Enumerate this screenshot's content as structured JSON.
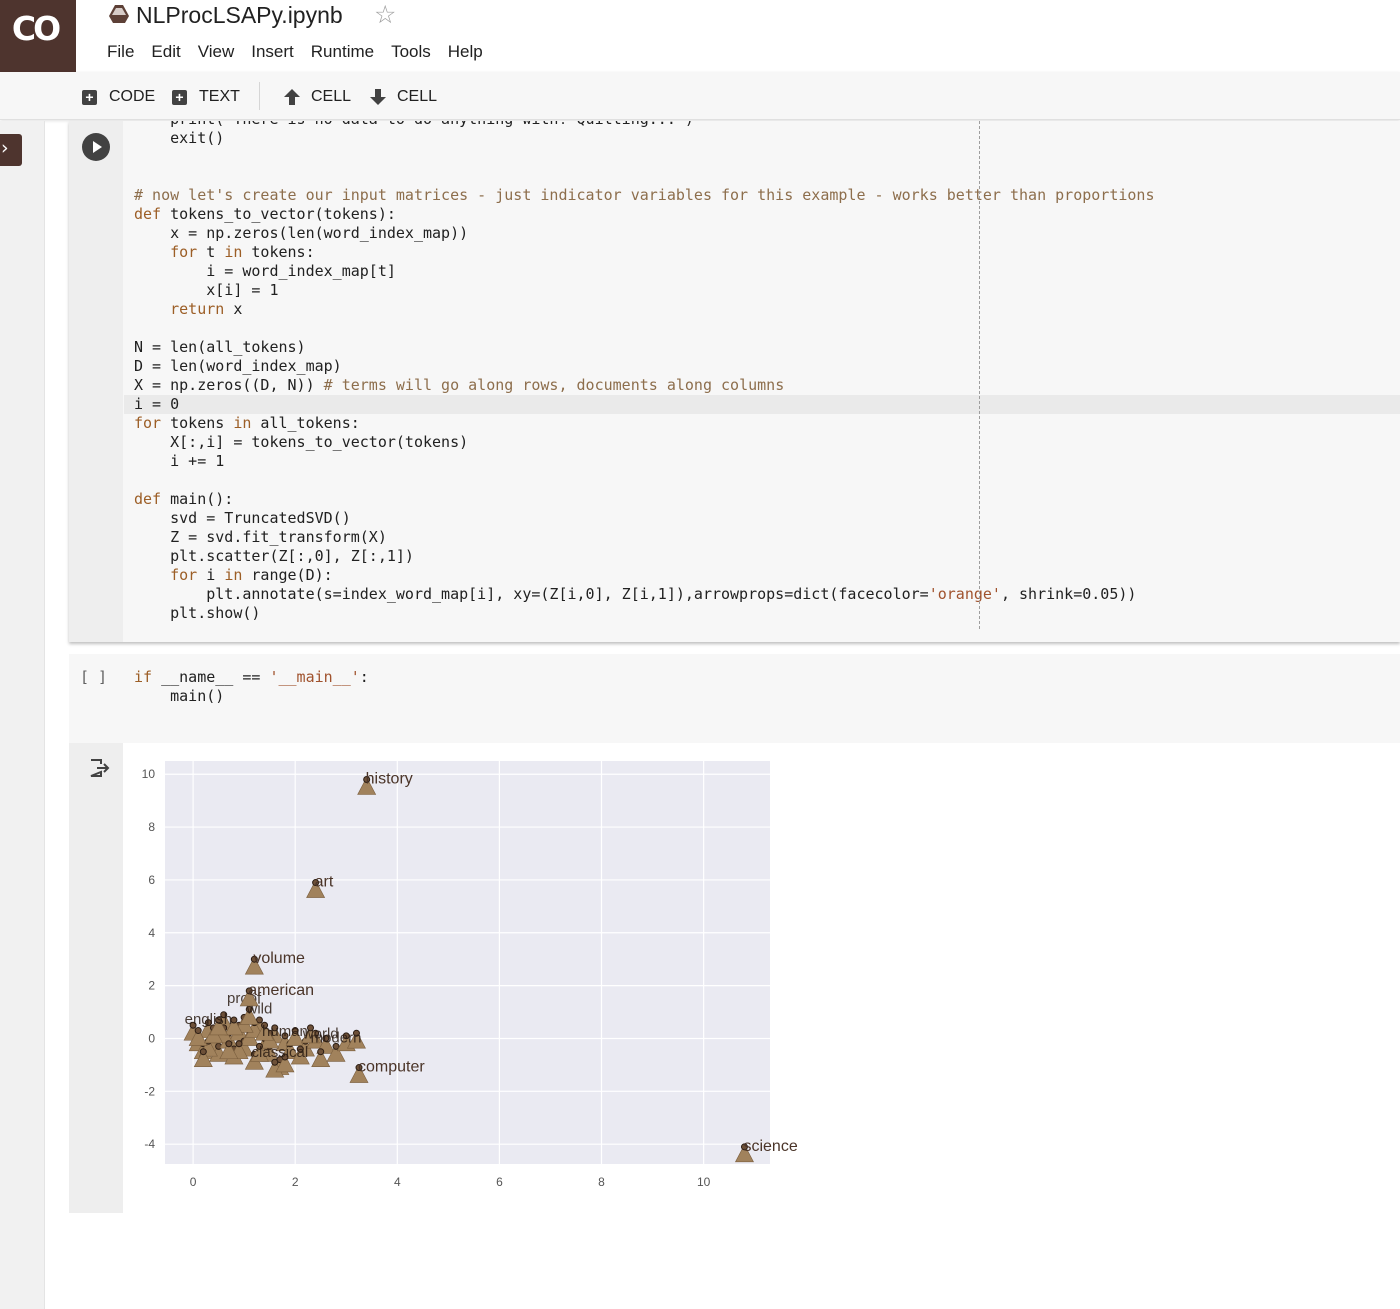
{
  "app": {
    "logo_text": "CO",
    "notebook_title": "NLProcLSAPy.ipynb",
    "star_glyph": "☆",
    "brand_color": "#4e342e"
  },
  "menu": [
    "File",
    "Edit",
    "View",
    "Insert",
    "Runtime",
    "Tools",
    "Help"
  ],
  "toolbar": {
    "code_label": "CODE",
    "text_label": "TEXT",
    "cell_up_label": "CELL",
    "cell_down_label": "CELL"
  },
  "cell1": {
    "lines": [
      [
        {
          "t": "    print(\"There is no data to do anything with! Quitting...\")",
          "c": "nm"
        }
      ],
      [
        {
          "t": "    exit()",
          "c": "nm"
        }
      ],
      [
        {
          "t": "",
          "c": "nm"
        }
      ],
      [
        {
          "t": "",
          "c": "nm"
        }
      ],
      [
        {
          "t": "# now let's create our input matrices - just indicator variables for this example - works better than proportions",
          "c": "cm"
        }
      ],
      [
        {
          "t": "def",
          "c": "kw"
        },
        {
          "t": " tokens_to_vector(tokens):",
          "c": "nm"
        }
      ],
      [
        {
          "t": "    x = np.zeros(len(word_index_map))",
          "c": "nm"
        }
      ],
      [
        {
          "t": "    ",
          "c": "nm"
        },
        {
          "t": "for",
          "c": "kw"
        },
        {
          "t": " t ",
          "c": "nm"
        },
        {
          "t": "in",
          "c": "kw"
        },
        {
          "t": " tokens:",
          "c": "nm"
        }
      ],
      [
        {
          "t": "        i = word_index_map[t]",
          "c": "nm"
        }
      ],
      [
        {
          "t": "        x[i] = 1",
          "c": "nm"
        }
      ],
      [
        {
          "t": "    ",
          "c": "nm"
        },
        {
          "t": "return",
          "c": "kw"
        },
        {
          "t": " x",
          "c": "nm"
        }
      ],
      [
        {
          "t": "",
          "c": "nm"
        }
      ],
      [
        {
          "t": "N = len(all_tokens)",
          "c": "nm"
        }
      ],
      [
        {
          "t": "D = len(word_index_map)",
          "c": "nm"
        }
      ],
      [
        {
          "t": "X = np.zeros((D, N)) ",
          "c": "nm"
        },
        {
          "t": "# terms will go along rows, documents along columns",
          "c": "cm"
        }
      ],
      [
        {
          "t": "i = 0",
          "c": "nm"
        }
      ],
      [
        {
          "t": "for",
          "c": "kw"
        },
        {
          "t": " tokens ",
          "c": "nm"
        },
        {
          "t": "in",
          "c": "kw"
        },
        {
          "t": " all_tokens:",
          "c": "nm"
        }
      ],
      [
        {
          "t": "    X[:,i] = tokens_to_vector(tokens)",
          "c": "nm"
        }
      ],
      [
        {
          "t": "    i += 1",
          "c": "nm"
        }
      ],
      [
        {
          "t": "",
          "c": "nm"
        }
      ],
      [
        {
          "t": "def",
          "c": "kw"
        },
        {
          "t": " main():",
          "c": "nm"
        }
      ],
      [
        {
          "t": "    svd = TruncatedSVD()",
          "c": "nm"
        }
      ],
      [
        {
          "t": "    Z = svd.fit_transform(X)",
          "c": "nm"
        }
      ],
      [
        {
          "t": "    plt.scatter(Z[:,0], Z[:,1])",
          "c": "nm"
        }
      ],
      [
        {
          "t": "    ",
          "c": "nm"
        },
        {
          "t": "for",
          "c": "kw"
        },
        {
          "t": " i ",
          "c": "nm"
        },
        {
          "t": "in",
          "c": "kw"
        },
        {
          "t": " range(D):",
          "c": "nm"
        }
      ],
      [
        {
          "t": "        plt.annotate(s=index_word_map[i], xy=(Z[i,0], Z[i,1]),arrowprops=dict(facecolor=",
          "c": "nm"
        },
        {
          "t": "'orange'",
          "c": "st"
        },
        {
          "t": ", shrink=0.05))",
          "c": "nm"
        }
      ],
      [
        {
          "t": "    plt.show()",
          "c": "nm"
        }
      ]
    ]
  },
  "cell2": {
    "prompt": "[ ]",
    "lines": [
      [
        {
          "t": "if",
          "c": "kw"
        },
        {
          "t": " __name__ == ",
          "c": "nm"
        },
        {
          "t": "'__main__'",
          "c": "st"
        },
        {
          "t": ":",
          "c": "nm"
        }
      ],
      [
        {
          "t": "    main()",
          "c": "nm"
        }
      ]
    ]
  },
  "chart_data": {
    "type": "scatter",
    "title": "",
    "xlabel": "",
    "ylabel": "",
    "xlim": [
      -0.55,
      11.3
    ],
    "ylim": [
      -4.75,
      10.5
    ],
    "xticks": [
      0,
      2,
      4,
      6,
      8,
      10
    ],
    "yticks": [
      -4,
      -2,
      0,
      2,
      4,
      6,
      8,
      10
    ],
    "grid": true,
    "background": "#eaeaf2",
    "marker_color": "#a1825c",
    "label_color": "#4a3428",
    "labeled_points": [
      {
        "label": "history",
        "x": 3.4,
        "y": 9.8
      },
      {
        "label": "art",
        "x": 2.4,
        "y": 5.9
      },
      {
        "label": "volume",
        "x": 1.2,
        "y": 3.0
      },
      {
        "label": "american",
        "x": 1.1,
        "y": 1.8
      },
      {
        "label": "computer",
        "x": 3.25,
        "y": -1.1
      },
      {
        "label": "science",
        "x": 10.8,
        "y": -4.1
      }
    ],
    "cluster_points": [
      [
        0.0,
        0.5
      ],
      [
        0.1,
        0.1
      ],
      [
        0.2,
        -0.2
      ],
      [
        0.3,
        0.6
      ],
      [
        0.4,
        0.0
      ],
      [
        0.5,
        -0.3
      ],
      [
        0.6,
        0.9
      ],
      [
        0.7,
        0.2
      ],
      [
        0.8,
        -0.4
      ],
      [
        0.9,
        0.5
      ],
      [
        1.0,
        -0.1
      ],
      [
        1.1,
        0.3
      ],
      [
        1.2,
        -0.6
      ],
      [
        1.3,
        0.7
      ],
      [
        1.4,
        0.0
      ],
      [
        1.5,
        -0.3
      ],
      [
        1.6,
        0.4
      ],
      [
        1.7,
        -0.8
      ],
      [
        1.8,
        0.1
      ],
      [
        1.9,
        -0.2
      ],
      [
        2.0,
        0.3
      ],
      [
        2.2,
        -0.1
      ],
      [
        2.4,
        0.2
      ],
      [
        2.6,
        0.0
      ],
      [
        2.8,
        -0.3
      ],
      [
        3.0,
        0.1
      ],
      [
        3.2,
        0.2
      ],
      [
        0.3,
        -0.1
      ],
      [
        0.6,
        0.4
      ],
      [
        0.9,
        -0.2
      ],
      [
        1.2,
        0.6
      ],
      [
        1.5,
        0.2
      ],
      [
        0.1,
        0.3
      ],
      [
        0.4,
        0.4
      ],
      [
        0.7,
        -0.2
      ],
      [
        1.0,
        0.8
      ],
      [
        1.3,
        -0.3
      ],
      [
        1.6,
        -0.9
      ],
      [
        1.8,
        -0.7
      ],
      [
        1.1,
        1.1
      ],
      [
        0.8,
        0.7
      ],
      [
        2.1,
        -0.4
      ],
      [
        2.5,
        -0.5
      ],
      [
        0.2,
        -0.5
      ],
      [
        0.5,
        0.7
      ],
      [
        1.4,
        0.5
      ],
      [
        2.3,
        0.4
      ]
    ],
    "cluster_labels": [
      {
        "label": "proof",
        "x": 1.0,
        "y": 1.5
      },
      {
        "label": "wild",
        "x": 1.3,
        "y": 1.1
      },
      {
        "label": "world",
        "x": 2.5,
        "y": 0.15
      },
      {
        "label": "classical",
        "x": 1.7,
        "y": -0.55
      },
      {
        "label": "english",
        "x": 0.3,
        "y": 0.7
      },
      {
        "label": "human",
        "x": 1.8,
        "y": 0.25
      },
      {
        "label": "modern",
        "x": 2.8,
        "y": 0.0
      }
    ]
  }
}
